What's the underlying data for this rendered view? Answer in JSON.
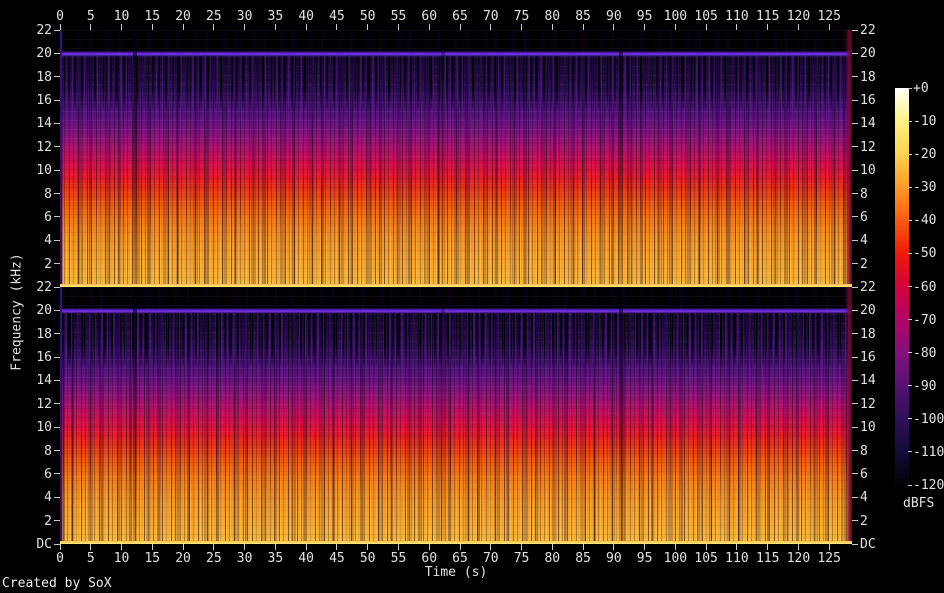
{
  "credit": "Created by SoX",
  "chart_data": {
    "type": "heatmap",
    "subtype": "audio-spectrogram-stereo",
    "generator": "SoX",
    "xlabel": "Time (s)",
    "ylabel": "Frequency (kHz)",
    "x_ticks": [
      0,
      5,
      10,
      15,
      20,
      25,
      30,
      35,
      40,
      45,
      50,
      55,
      60,
      65,
      70,
      75,
      80,
      85,
      90,
      95,
      100,
      105,
      110,
      115,
      120,
      125
    ],
    "x_range_s": [
      0,
      128.7
    ],
    "y_tick_labels_khz": [
      "22",
      "20",
      "18",
      "16",
      "14",
      "12",
      "10",
      "8",
      "6",
      "4",
      "2"
    ],
    "y_bottom_label": "DC",
    "y_range_khz": [
      0,
      22
    ],
    "panel_count": 2,
    "grid": false,
    "colorbar": {
      "label": "dBFS",
      "tick_labels": [
        "+0",
        "-10",
        "-20",
        "-30",
        "-40",
        "-50",
        "-60",
        "-70",
        "-80",
        "-90",
        "-100",
        "-110",
        "-120"
      ],
      "range_dbfs": [
        0,
        -120
      ],
      "colors": [
        "#ffffff",
        "#fff382",
        "#ffd14b",
        "#ff9a26",
        "#fb5b0c",
        "#ee1907",
        "#d6003c",
        "#b00566",
        "#84107c",
        "#551173",
        "#2e1058",
        "#150b38",
        "#020108"
      ]
    }
  }
}
